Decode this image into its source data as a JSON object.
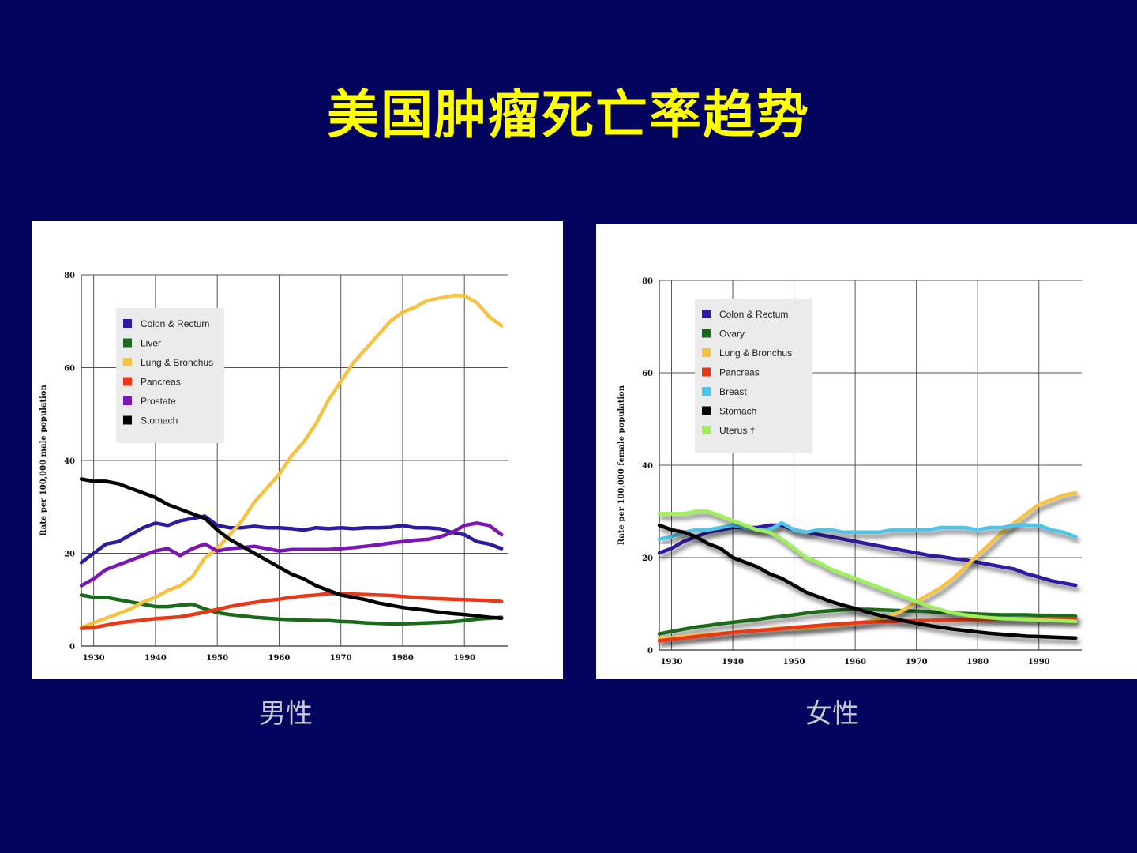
{
  "slide": {
    "title": "美国肿瘤死亡率趋势",
    "background": "#02045e",
    "title_color": "#ffff00"
  },
  "chart_data": [
    {
      "type": "line",
      "caption": "男性",
      "ylabel": "Rate per 100,000 male population",
      "xlim": [
        1928,
        1997
      ],
      "ylim": [
        0,
        80
      ],
      "xticks": [
        1930,
        1940,
        1950,
        1960,
        1970,
        1980,
        1990
      ],
      "yticks": [
        0,
        20,
        40,
        60,
        80
      ],
      "grid": true,
      "legend_position": "top-left",
      "series": [
        {
          "name": "Colon & Rectum",
          "color": "#2e1a9c",
          "x": [
            1928,
            1930,
            1932,
            1934,
            1936,
            1938,
            1940,
            1942,
            1944,
            1946,
            1948,
            1950,
            1952,
            1954,
            1956,
            1958,
            1960,
            1962,
            1964,
            1966,
            1968,
            1970,
            1972,
            1974,
            1976,
            1978,
            1980,
            1982,
            1984,
            1986,
            1988,
            1990,
            1992,
            1994,
            1996
          ],
          "y": [
            18,
            20,
            22,
            22.5,
            24,
            25.5,
            26.5,
            26,
            27,
            27.5,
            28,
            26,
            25.5,
            25.5,
            25.8,
            25.5,
            25.5,
            25.3,
            25,
            25.5,
            25.3,
            25.5,
            25.3,
            25.5,
            25.5,
            25.6,
            26,
            25.5,
            25.5,
            25.3,
            24.5,
            24,
            22.5,
            22,
            21
          ]
        },
        {
          "name": "Liver",
          "color": "#1a6a1a",
          "x": [
            1928,
            1930,
            1932,
            1934,
            1936,
            1938,
            1940,
            1942,
            1944,
            1946,
            1948,
            1950,
            1952,
            1954,
            1956,
            1958,
            1960,
            1962,
            1964,
            1966,
            1968,
            1970,
            1972,
            1974,
            1976,
            1978,
            1980,
            1982,
            1984,
            1986,
            1988,
            1990,
            1992,
            1994,
            1996
          ],
          "y": [
            11,
            10.5,
            10.5,
            10,
            9.5,
            9,
            8.5,
            8.5,
            8.8,
            9,
            8,
            7.2,
            6.8,
            6.5,
            6.2,
            6,
            5.8,
            5.7,
            5.6,
            5.5,
            5.5,
            5.3,
            5.2,
            5,
            4.9,
            4.8,
            4.8,
            4.9,
            5,
            5.1,
            5.2,
            5.5,
            5.8,
            6,
            6.2
          ]
        },
        {
          "name": "Lung & Bronchus",
          "color": "#f5c242",
          "x": [
            1928,
            1930,
            1932,
            1934,
            1936,
            1938,
            1940,
            1942,
            1944,
            1946,
            1948,
            1950,
            1952,
            1954,
            1956,
            1958,
            1960,
            1962,
            1964,
            1966,
            1968,
            1970,
            1972,
            1974,
            1976,
            1978,
            1980,
            1982,
            1984,
            1986,
            1988,
            1990,
            1992,
            1994,
            1996
          ],
          "y": [
            4,
            5,
            6,
            7,
            8,
            9.5,
            10.5,
            12,
            13,
            15,
            19,
            21,
            24,
            27,
            31,
            34,
            37,
            41,
            44,
            48,
            53,
            57,
            61,
            64,
            67,
            70,
            72,
            73,
            74.5,
            75,
            75.5,
            75.5,
            74,
            71,
            69
          ]
        },
        {
          "name": "Pancreas",
          "color": "#e83818",
          "x": [
            1928,
            1930,
            1932,
            1934,
            1936,
            1938,
            1940,
            1942,
            1944,
            1946,
            1948,
            1950,
            1952,
            1954,
            1956,
            1958,
            1960,
            1962,
            1964,
            1966,
            1968,
            1970,
            1972,
            1974,
            1976,
            1978,
            1980,
            1982,
            1984,
            1986,
            1988,
            1990,
            1992,
            1994,
            1996
          ],
          "y": [
            3.8,
            4,
            4.5,
            5,
            5.3,
            5.6,
            5.9,
            6.1,
            6.3,
            6.8,
            7.3,
            7.9,
            8.5,
            9,
            9.4,
            9.8,
            10.1,
            10.5,
            10.8,
            11,
            11.3,
            11.3,
            11.2,
            11.1,
            11,
            10.9,
            10.7,
            10.5,
            10.3,
            10.2,
            10.1,
            10,
            9.9,
            9.8,
            9.6
          ]
        },
        {
          "name": "Prostate",
          "color": "#7a16b4",
          "x": [
            1928,
            1930,
            1932,
            1934,
            1936,
            1938,
            1940,
            1942,
            1944,
            1946,
            1948,
            1950,
            1952,
            1954,
            1956,
            1958,
            1960,
            1962,
            1964,
            1966,
            1968,
            1970,
            1972,
            1974,
            1976,
            1978,
            1980,
            1982,
            1984,
            1986,
            1988,
            1990,
            1992,
            1994,
            1996
          ],
          "y": [
            13,
            14.5,
            16.5,
            17.5,
            18.5,
            19.5,
            20.5,
            21,
            19.5,
            21,
            22,
            20.5,
            21,
            21.2,
            21.5,
            21,
            20.5,
            20.8,
            20.8,
            20.8,
            20.8,
            21,
            21.2,
            21.5,
            21.8,
            22.2,
            22.5,
            22.8,
            23,
            23.5,
            24.5,
            26,
            26.5,
            26,
            24
          ]
        },
        {
          "name": "Stomach",
          "color": "#000000",
          "x": [
            1928,
            1930,
            1932,
            1934,
            1936,
            1938,
            1940,
            1942,
            1944,
            1946,
            1948,
            1950,
            1952,
            1954,
            1956,
            1958,
            1960,
            1962,
            1964,
            1966,
            1968,
            1970,
            1972,
            1974,
            1976,
            1978,
            1980,
            1982,
            1984,
            1986,
            1988,
            1990,
            1992,
            1994,
            1996
          ],
          "y": [
            36,
            35.5,
            35.5,
            35,
            34,
            33,
            32,
            30.5,
            29.5,
            28.5,
            27.5,
            25,
            23,
            21.5,
            20,
            18.5,
            17,
            15.5,
            14.5,
            13,
            12,
            11,
            10.5,
            10,
            9.3,
            8.8,
            8.3,
            8,
            7.7,
            7.3,
            7,
            6.8,
            6.5,
            6.2,
            6
          ]
        }
      ]
    },
    {
      "type": "line",
      "caption": "女性",
      "ylabel": "Rate per 100,000 female population",
      "xlim": [
        1928,
        1997
      ],
      "ylim": [
        0,
        80
      ],
      "xticks": [
        1930,
        1940,
        1950,
        1960,
        1970,
        1980,
        1990
      ],
      "yticks": [
        0,
        20,
        40,
        60,
        80
      ],
      "grid": true,
      "legend_position": "top-left",
      "series": [
        {
          "name": "Colon & Rectum",
          "color": "#2e1a9c",
          "x": [
            1928,
            1930,
            1932,
            1934,
            1936,
            1938,
            1940,
            1942,
            1944,
            1946,
            1948,
            1950,
            1952,
            1954,
            1956,
            1958,
            1960,
            1962,
            1964,
            1966,
            1968,
            1970,
            1972,
            1974,
            1976,
            1978,
            1980,
            1982,
            1984,
            1986,
            1988,
            1990,
            1992,
            1994,
            1996
          ],
          "y": [
            21,
            22,
            23.5,
            24.5,
            25.5,
            26,
            26.5,
            26.5,
            26.5,
            27,
            27,
            26,
            25.5,
            25,
            24.5,
            24,
            23.5,
            23,
            22.5,
            22,
            21.5,
            21,
            20.5,
            20.2,
            19.8,
            19.5,
            19,
            18.5,
            18,
            17.5,
            16.5,
            15.8,
            15,
            14.5,
            14
          ]
        },
        {
          "name": "Ovary",
          "color": "#1a6a1a",
          "x": [
            1928,
            1930,
            1932,
            1934,
            1936,
            1938,
            1940,
            1942,
            1944,
            1946,
            1948,
            1950,
            1952,
            1954,
            1956,
            1958,
            1960,
            1962,
            1964,
            1966,
            1968,
            1970,
            1972,
            1974,
            1976,
            1978,
            1980,
            1982,
            1984,
            1986,
            1988,
            1990,
            1992,
            1994,
            1996
          ],
          "y": [
            3.5,
            4,
            4.5,
            5,
            5.3,
            5.7,
            6,
            6.3,
            6.6,
            7,
            7.3,
            7.6,
            8,
            8.3,
            8.5,
            8.7,
            8.8,
            8.8,
            8.7,
            8.6,
            8.5,
            8.4,
            8.3,
            8.1,
            8,
            7.9,
            7.8,
            7.7,
            7.6,
            7.6,
            7.6,
            7.5,
            7.5,
            7.4,
            7.3
          ]
        },
        {
          "name": "Lung & Bronchus",
          "color": "#f5c242",
          "x": [
            1928,
            1930,
            1932,
            1934,
            1936,
            1938,
            1940,
            1942,
            1944,
            1946,
            1948,
            1950,
            1952,
            1954,
            1956,
            1958,
            1960,
            1962,
            1964,
            1966,
            1968,
            1970,
            1972,
            1974,
            1976,
            1978,
            1980,
            1982,
            1984,
            1986,
            1988,
            1990,
            1992,
            1994,
            1996
          ],
          "y": [
            2.5,
            2.7,
            3,
            3.2,
            3.4,
            3.6,
            3.8,
            4,
            4.2,
            4.5,
            4.8,
            4.6,
            4.8,
            5,
            5.2,
            5.5,
            5.8,
            6.2,
            6.8,
            7.5,
            8.7,
            10.5,
            12,
            13.5,
            15.5,
            18,
            20.5,
            23,
            25.5,
            27.5,
            29.5,
            31.5,
            32.5,
            33.5,
            34
          ]
        },
        {
          "name": "Pancreas",
          "color": "#e83818",
          "x": [
            1928,
            1930,
            1932,
            1934,
            1936,
            1938,
            1940,
            1942,
            1944,
            1946,
            1948,
            1950,
            1952,
            1954,
            1956,
            1958,
            1960,
            1962,
            1964,
            1966,
            1968,
            1970,
            1972,
            1974,
            1976,
            1978,
            1980,
            1982,
            1984,
            1986,
            1988,
            1990,
            1992,
            1994,
            1996
          ],
          "y": [
            2,
            2.3,
            2.6,
            2.9,
            3.2,
            3.5,
            3.8,
            4,
            4.2,
            4.4,
            4.6,
            4.9,
            5.1,
            5.3,
            5.5,
            5.7,
            5.9,
            6,
            6.1,
            6.2,
            6.3,
            6.4,
            6.4,
            6.5,
            6.5,
            6.6,
            6.6,
            6.6,
            6.7,
            6.7,
            6.7,
            6.7,
            6.8,
            6.8,
            6.8
          ]
        },
        {
          "name": "Breast",
          "color": "#4fc3e8",
          "x": [
            1928,
            1930,
            1932,
            1934,
            1936,
            1938,
            1940,
            1942,
            1944,
            1946,
            1948,
            1950,
            1952,
            1954,
            1956,
            1958,
            1960,
            1962,
            1964,
            1966,
            1968,
            1970,
            1972,
            1974,
            1976,
            1978,
            1980,
            1982,
            1984,
            1986,
            1988,
            1990,
            1992,
            1994,
            1996
          ],
          "y": [
            24,
            24.5,
            25.5,
            26,
            26,
            26.5,
            27,
            26.5,
            26,
            26,
            27.5,
            26,
            25.5,
            26,
            26,
            25.5,
            25.5,
            25.5,
            25.5,
            26,
            26,
            26,
            26,
            26.5,
            26.5,
            26.5,
            26,
            26.5,
            26.5,
            27,
            27,
            27,
            26,
            25.5,
            24.5
          ]
        },
        {
          "name": "Stomach",
          "color": "#000000",
          "x": [
            1928,
            1930,
            1932,
            1934,
            1936,
            1938,
            1940,
            1942,
            1944,
            1946,
            1948,
            1950,
            1952,
            1954,
            1956,
            1958,
            1960,
            1962,
            1964,
            1966,
            1968,
            1970,
            1972,
            1974,
            1976,
            1978,
            1980,
            1982,
            1984,
            1986,
            1988,
            1990,
            1992,
            1994,
            1996
          ],
          "y": [
            27,
            26,
            25.5,
            24.5,
            23,
            22,
            20,
            19,
            18,
            16.5,
            15.5,
            14,
            12.5,
            11.5,
            10.5,
            9.7,
            9,
            8.2,
            7.5,
            6.9,
            6.3,
            5.8,
            5.3,
            4.9,
            4.5,
            4.2,
            3.9,
            3.6,
            3.4,
            3.2,
            3,
            2.9,
            2.8,
            2.7,
            2.6
          ]
        },
        {
          "name": "Uterus †",
          "color": "#9ef05a",
          "x": [
            1928,
            1930,
            1932,
            1934,
            1936,
            1938,
            1940,
            1942,
            1944,
            1946,
            1948,
            1950,
            1952,
            1954,
            1956,
            1958,
            1960,
            1962,
            1964,
            1966,
            1968,
            1970,
            1972,
            1974,
            1976,
            1978,
            1980,
            1982,
            1984,
            1986,
            1988,
            1990,
            1992,
            1994,
            1996
          ],
          "y": [
            29.5,
            29.5,
            29.5,
            30,
            30,
            29,
            28,
            27,
            26,
            25.5,
            24,
            22,
            20,
            19,
            17.5,
            16.5,
            15.5,
            14.5,
            13.5,
            12.5,
            11.5,
            10.5,
            9.5,
            8.7,
            8,
            7.6,
            7.2,
            7,
            6.8,
            6.7,
            6.6,
            6.5,
            6.4,
            6.3,
            6.2
          ]
        }
      ]
    }
  ]
}
